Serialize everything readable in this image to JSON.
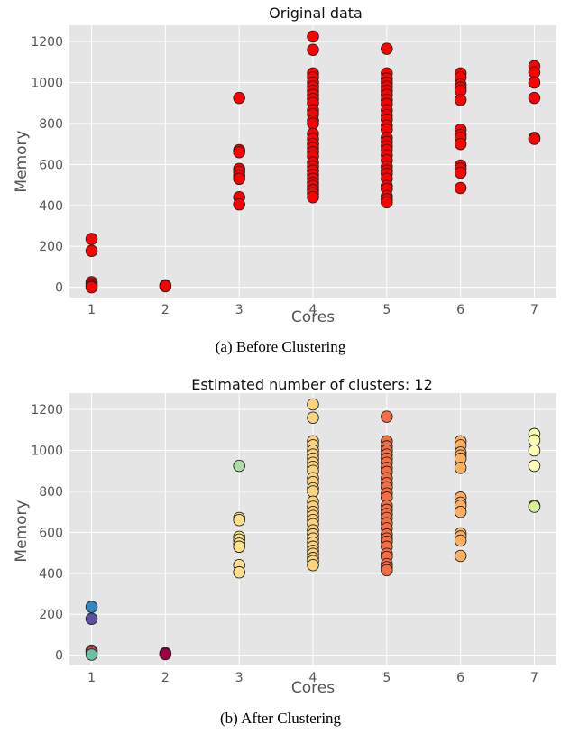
{
  "panels": [
    {
      "caption": "(a) Before Clustering",
      "chart_data": {
        "type": "scatter",
        "title": "Original data",
        "xlabel": "Cores",
        "ylabel": "Memory",
        "xlim": [
          0.7,
          7.3
        ],
        "ylim": [
          -50,
          1280
        ],
        "xticks": [
          1,
          2,
          3,
          4,
          5,
          6,
          7
        ],
        "yticks": [
          0,
          200,
          400,
          600,
          800,
          1000,
          1200
        ],
        "grid": true,
        "color": "#ff0000",
        "points": [
          {
            "x": 1,
            "y": 236
          },
          {
            "x": 1,
            "y": 178
          },
          {
            "x": 1,
            "y": 25
          },
          {
            "x": 1,
            "y": 15
          },
          {
            "x": 1,
            "y": 5
          },
          {
            "x": 1,
            "y": 0
          },
          {
            "x": 2,
            "y": 10
          },
          {
            "x": 2,
            "y": 5
          },
          {
            "x": 3,
            "y": 925
          },
          {
            "x": 3,
            "y": 670
          },
          {
            "x": 3,
            "y": 660
          },
          {
            "x": 3,
            "y": 578
          },
          {
            "x": 3,
            "y": 565
          },
          {
            "x": 3,
            "y": 545
          },
          {
            "x": 3,
            "y": 530
          },
          {
            "x": 3,
            "y": 440
          },
          {
            "x": 3,
            "y": 405
          },
          {
            "x": 4,
            "y": 1225
          },
          {
            "x": 4,
            "y": 1160
          },
          {
            "x": 4,
            "y": 1045
          },
          {
            "x": 4,
            "y": 1025
          },
          {
            "x": 4,
            "y": 1000
          },
          {
            "x": 4,
            "y": 980
          },
          {
            "x": 4,
            "y": 960
          },
          {
            "x": 4,
            "y": 940
          },
          {
            "x": 4,
            "y": 920
          },
          {
            "x": 4,
            "y": 900
          },
          {
            "x": 4,
            "y": 865
          },
          {
            "x": 4,
            "y": 845
          },
          {
            "x": 4,
            "y": 815
          },
          {
            "x": 4,
            "y": 800
          },
          {
            "x": 4,
            "y": 750
          },
          {
            "x": 4,
            "y": 725
          },
          {
            "x": 4,
            "y": 700
          },
          {
            "x": 4,
            "y": 680
          },
          {
            "x": 4,
            "y": 660
          },
          {
            "x": 4,
            "y": 640
          },
          {
            "x": 4,
            "y": 610
          },
          {
            "x": 4,
            "y": 590
          },
          {
            "x": 4,
            "y": 570
          },
          {
            "x": 4,
            "y": 550
          },
          {
            "x": 4,
            "y": 530
          },
          {
            "x": 4,
            "y": 510
          },
          {
            "x": 4,
            "y": 495
          },
          {
            "x": 4,
            "y": 475
          },
          {
            "x": 4,
            "y": 460
          },
          {
            "x": 4,
            "y": 440
          },
          {
            "x": 5,
            "y": 1165
          },
          {
            "x": 5,
            "y": 1045
          },
          {
            "x": 5,
            "y": 1020
          },
          {
            "x": 5,
            "y": 1000
          },
          {
            "x": 5,
            "y": 980
          },
          {
            "x": 5,
            "y": 960
          },
          {
            "x": 5,
            "y": 940
          },
          {
            "x": 5,
            "y": 915
          },
          {
            "x": 5,
            "y": 895
          },
          {
            "x": 5,
            "y": 865
          },
          {
            "x": 5,
            "y": 840
          },
          {
            "x": 5,
            "y": 820
          },
          {
            "x": 5,
            "y": 790
          },
          {
            "x": 5,
            "y": 770
          },
          {
            "x": 5,
            "y": 730
          },
          {
            "x": 5,
            "y": 710
          },
          {
            "x": 5,
            "y": 690
          },
          {
            "x": 5,
            "y": 670
          },
          {
            "x": 5,
            "y": 645
          },
          {
            "x": 5,
            "y": 620
          },
          {
            "x": 5,
            "y": 590
          },
          {
            "x": 5,
            "y": 570
          },
          {
            "x": 5,
            "y": 555
          },
          {
            "x": 5,
            "y": 530
          },
          {
            "x": 5,
            "y": 495
          },
          {
            "x": 5,
            "y": 480
          },
          {
            "x": 5,
            "y": 445
          },
          {
            "x": 5,
            "y": 430
          },
          {
            "x": 5,
            "y": 415
          },
          {
            "x": 6,
            "y": 1045
          },
          {
            "x": 6,
            "y": 1025
          },
          {
            "x": 6,
            "y": 990
          },
          {
            "x": 6,
            "y": 975
          },
          {
            "x": 6,
            "y": 960
          },
          {
            "x": 6,
            "y": 915
          },
          {
            "x": 6,
            "y": 770
          },
          {
            "x": 6,
            "y": 745
          },
          {
            "x": 6,
            "y": 730
          },
          {
            "x": 6,
            "y": 700
          },
          {
            "x": 6,
            "y": 595
          },
          {
            "x": 6,
            "y": 580
          },
          {
            "x": 6,
            "y": 560
          },
          {
            "x": 6,
            "y": 485
          },
          {
            "x": 7,
            "y": 1080
          },
          {
            "x": 7,
            "y": 1050
          },
          {
            "x": 7,
            "y": 1000
          },
          {
            "x": 7,
            "y": 925
          },
          {
            "x": 7,
            "y": 730
          },
          {
            "x": 7,
            "y": 725
          }
        ]
      }
    },
    {
      "caption": "(b) After Clustering",
      "chart_data": {
        "type": "scatter",
        "title": "Estimated number of clusters: 12",
        "xlabel": "Cores",
        "ylabel": "Memory",
        "xlim": [
          0.7,
          7.3
        ],
        "ylim": [
          -50,
          1280
        ],
        "xticks": [
          1,
          2,
          3,
          4,
          5,
          6,
          7
        ],
        "yticks": [
          0,
          200,
          400,
          600,
          800,
          1000,
          1200
        ],
        "grid": true,
        "colors": {
          "c1": "#3288bd",
          "c2": "#5e4fa2",
          "c3": "#d53e4f",
          "c4": "#66c2a5",
          "c5": "#9e0142",
          "c6": "#fee08b",
          "c7": "#abdda4",
          "c8": "#fdd27c",
          "c9": "#f46d43",
          "c10": "#fdae61",
          "c11": "#ffffb3",
          "c12": "#d7ef9b"
        },
        "points": [
          {
            "x": 1,
            "y": 236,
            "c": "c1"
          },
          {
            "x": 1,
            "y": 178,
            "c": "c2"
          },
          {
            "x": 1,
            "y": 22,
            "c": "c3"
          },
          {
            "x": 1,
            "y": 15,
            "c": "c3"
          },
          {
            "x": 1,
            "y": 3,
            "c": "c4"
          },
          {
            "x": 2,
            "y": 10,
            "c": "c5"
          },
          {
            "x": 2,
            "y": 5,
            "c": "c5"
          },
          {
            "x": 3,
            "y": 925,
            "c": "c7"
          },
          {
            "x": 3,
            "y": 670,
            "c": "c6"
          },
          {
            "x": 3,
            "y": 660,
            "c": "c6"
          },
          {
            "x": 3,
            "y": 578,
            "c": "c6"
          },
          {
            "x": 3,
            "y": 565,
            "c": "c6"
          },
          {
            "x": 3,
            "y": 545,
            "c": "c6"
          },
          {
            "x": 3,
            "y": 530,
            "c": "c6"
          },
          {
            "x": 3,
            "y": 440,
            "c": "c6"
          },
          {
            "x": 3,
            "y": 405,
            "c": "c6"
          },
          {
            "x": 4,
            "y": 1225,
            "c": "c8"
          },
          {
            "x": 4,
            "y": 1160,
            "c": "c8"
          },
          {
            "x": 4,
            "y": 1045,
            "c": "c8"
          },
          {
            "x": 4,
            "y": 1025,
            "c": "c8"
          },
          {
            "x": 4,
            "y": 1000,
            "c": "c8"
          },
          {
            "x": 4,
            "y": 980,
            "c": "c8"
          },
          {
            "x": 4,
            "y": 960,
            "c": "c8"
          },
          {
            "x": 4,
            "y": 940,
            "c": "c8"
          },
          {
            "x": 4,
            "y": 920,
            "c": "c8"
          },
          {
            "x": 4,
            "y": 900,
            "c": "c8"
          },
          {
            "x": 4,
            "y": 865,
            "c": "c8"
          },
          {
            "x": 4,
            "y": 845,
            "c": "c8"
          },
          {
            "x": 4,
            "y": 815,
            "c": "c8"
          },
          {
            "x": 4,
            "y": 800,
            "c": "c8"
          },
          {
            "x": 4,
            "y": 750,
            "c": "c8"
          },
          {
            "x": 4,
            "y": 725,
            "c": "c8"
          },
          {
            "x": 4,
            "y": 700,
            "c": "c8"
          },
          {
            "x": 4,
            "y": 680,
            "c": "c8"
          },
          {
            "x": 4,
            "y": 660,
            "c": "c8"
          },
          {
            "x": 4,
            "y": 640,
            "c": "c8"
          },
          {
            "x": 4,
            "y": 610,
            "c": "c8"
          },
          {
            "x": 4,
            "y": 590,
            "c": "c8"
          },
          {
            "x": 4,
            "y": 570,
            "c": "c8"
          },
          {
            "x": 4,
            "y": 550,
            "c": "c8"
          },
          {
            "x": 4,
            "y": 530,
            "c": "c8"
          },
          {
            "x": 4,
            "y": 510,
            "c": "c8"
          },
          {
            "x": 4,
            "y": 495,
            "c": "c8"
          },
          {
            "x": 4,
            "y": 475,
            "c": "c8"
          },
          {
            "x": 4,
            "y": 460,
            "c": "c8"
          },
          {
            "x": 4,
            "y": 440,
            "c": "c8"
          },
          {
            "x": 5,
            "y": 1165,
            "c": "c9"
          },
          {
            "x": 5,
            "y": 1045,
            "c": "c9"
          },
          {
            "x": 5,
            "y": 1020,
            "c": "c9"
          },
          {
            "x": 5,
            "y": 1000,
            "c": "c9"
          },
          {
            "x": 5,
            "y": 980,
            "c": "c9"
          },
          {
            "x": 5,
            "y": 960,
            "c": "c9"
          },
          {
            "x": 5,
            "y": 940,
            "c": "c9"
          },
          {
            "x": 5,
            "y": 915,
            "c": "c9"
          },
          {
            "x": 5,
            "y": 895,
            "c": "c9"
          },
          {
            "x": 5,
            "y": 865,
            "c": "c9"
          },
          {
            "x": 5,
            "y": 840,
            "c": "c9"
          },
          {
            "x": 5,
            "y": 820,
            "c": "c9"
          },
          {
            "x": 5,
            "y": 790,
            "c": "c9"
          },
          {
            "x": 5,
            "y": 770,
            "c": "c9"
          },
          {
            "x": 5,
            "y": 730,
            "c": "c9"
          },
          {
            "x": 5,
            "y": 710,
            "c": "c9"
          },
          {
            "x": 5,
            "y": 690,
            "c": "c9"
          },
          {
            "x": 5,
            "y": 670,
            "c": "c9"
          },
          {
            "x": 5,
            "y": 645,
            "c": "c9"
          },
          {
            "x": 5,
            "y": 620,
            "c": "c9"
          },
          {
            "x": 5,
            "y": 590,
            "c": "c9"
          },
          {
            "x": 5,
            "y": 570,
            "c": "c9"
          },
          {
            "x": 5,
            "y": 555,
            "c": "c9"
          },
          {
            "x": 5,
            "y": 530,
            "c": "c9"
          },
          {
            "x": 5,
            "y": 495,
            "c": "c9"
          },
          {
            "x": 5,
            "y": 480,
            "c": "c9"
          },
          {
            "x": 5,
            "y": 445,
            "c": "c9"
          },
          {
            "x": 5,
            "y": 430,
            "c": "c9"
          },
          {
            "x": 5,
            "y": 415,
            "c": "c9"
          },
          {
            "x": 6,
            "y": 1045,
            "c": "c10"
          },
          {
            "x": 6,
            "y": 1025,
            "c": "c10"
          },
          {
            "x": 6,
            "y": 990,
            "c": "c10"
          },
          {
            "x": 6,
            "y": 975,
            "c": "c10"
          },
          {
            "x": 6,
            "y": 960,
            "c": "c10"
          },
          {
            "x": 6,
            "y": 915,
            "c": "c10"
          },
          {
            "x": 6,
            "y": 770,
            "c": "c10"
          },
          {
            "x": 6,
            "y": 745,
            "c": "c10"
          },
          {
            "x": 6,
            "y": 730,
            "c": "c10"
          },
          {
            "x": 6,
            "y": 700,
            "c": "c10"
          },
          {
            "x": 6,
            "y": 595,
            "c": "c10"
          },
          {
            "x": 6,
            "y": 580,
            "c": "c10"
          },
          {
            "x": 6,
            "y": 560,
            "c": "c10"
          },
          {
            "x": 6,
            "y": 485,
            "c": "c10"
          },
          {
            "x": 7,
            "y": 1080,
            "c": "c11"
          },
          {
            "x": 7,
            "y": 1050,
            "c": "c11"
          },
          {
            "x": 7,
            "y": 1000,
            "c": "c11"
          },
          {
            "x": 7,
            "y": 925,
            "c": "c11"
          },
          {
            "x": 7,
            "y": 730,
            "c": "c12"
          },
          {
            "x": 7,
            "y": 725,
            "c": "c12"
          }
        ]
      }
    }
  ]
}
